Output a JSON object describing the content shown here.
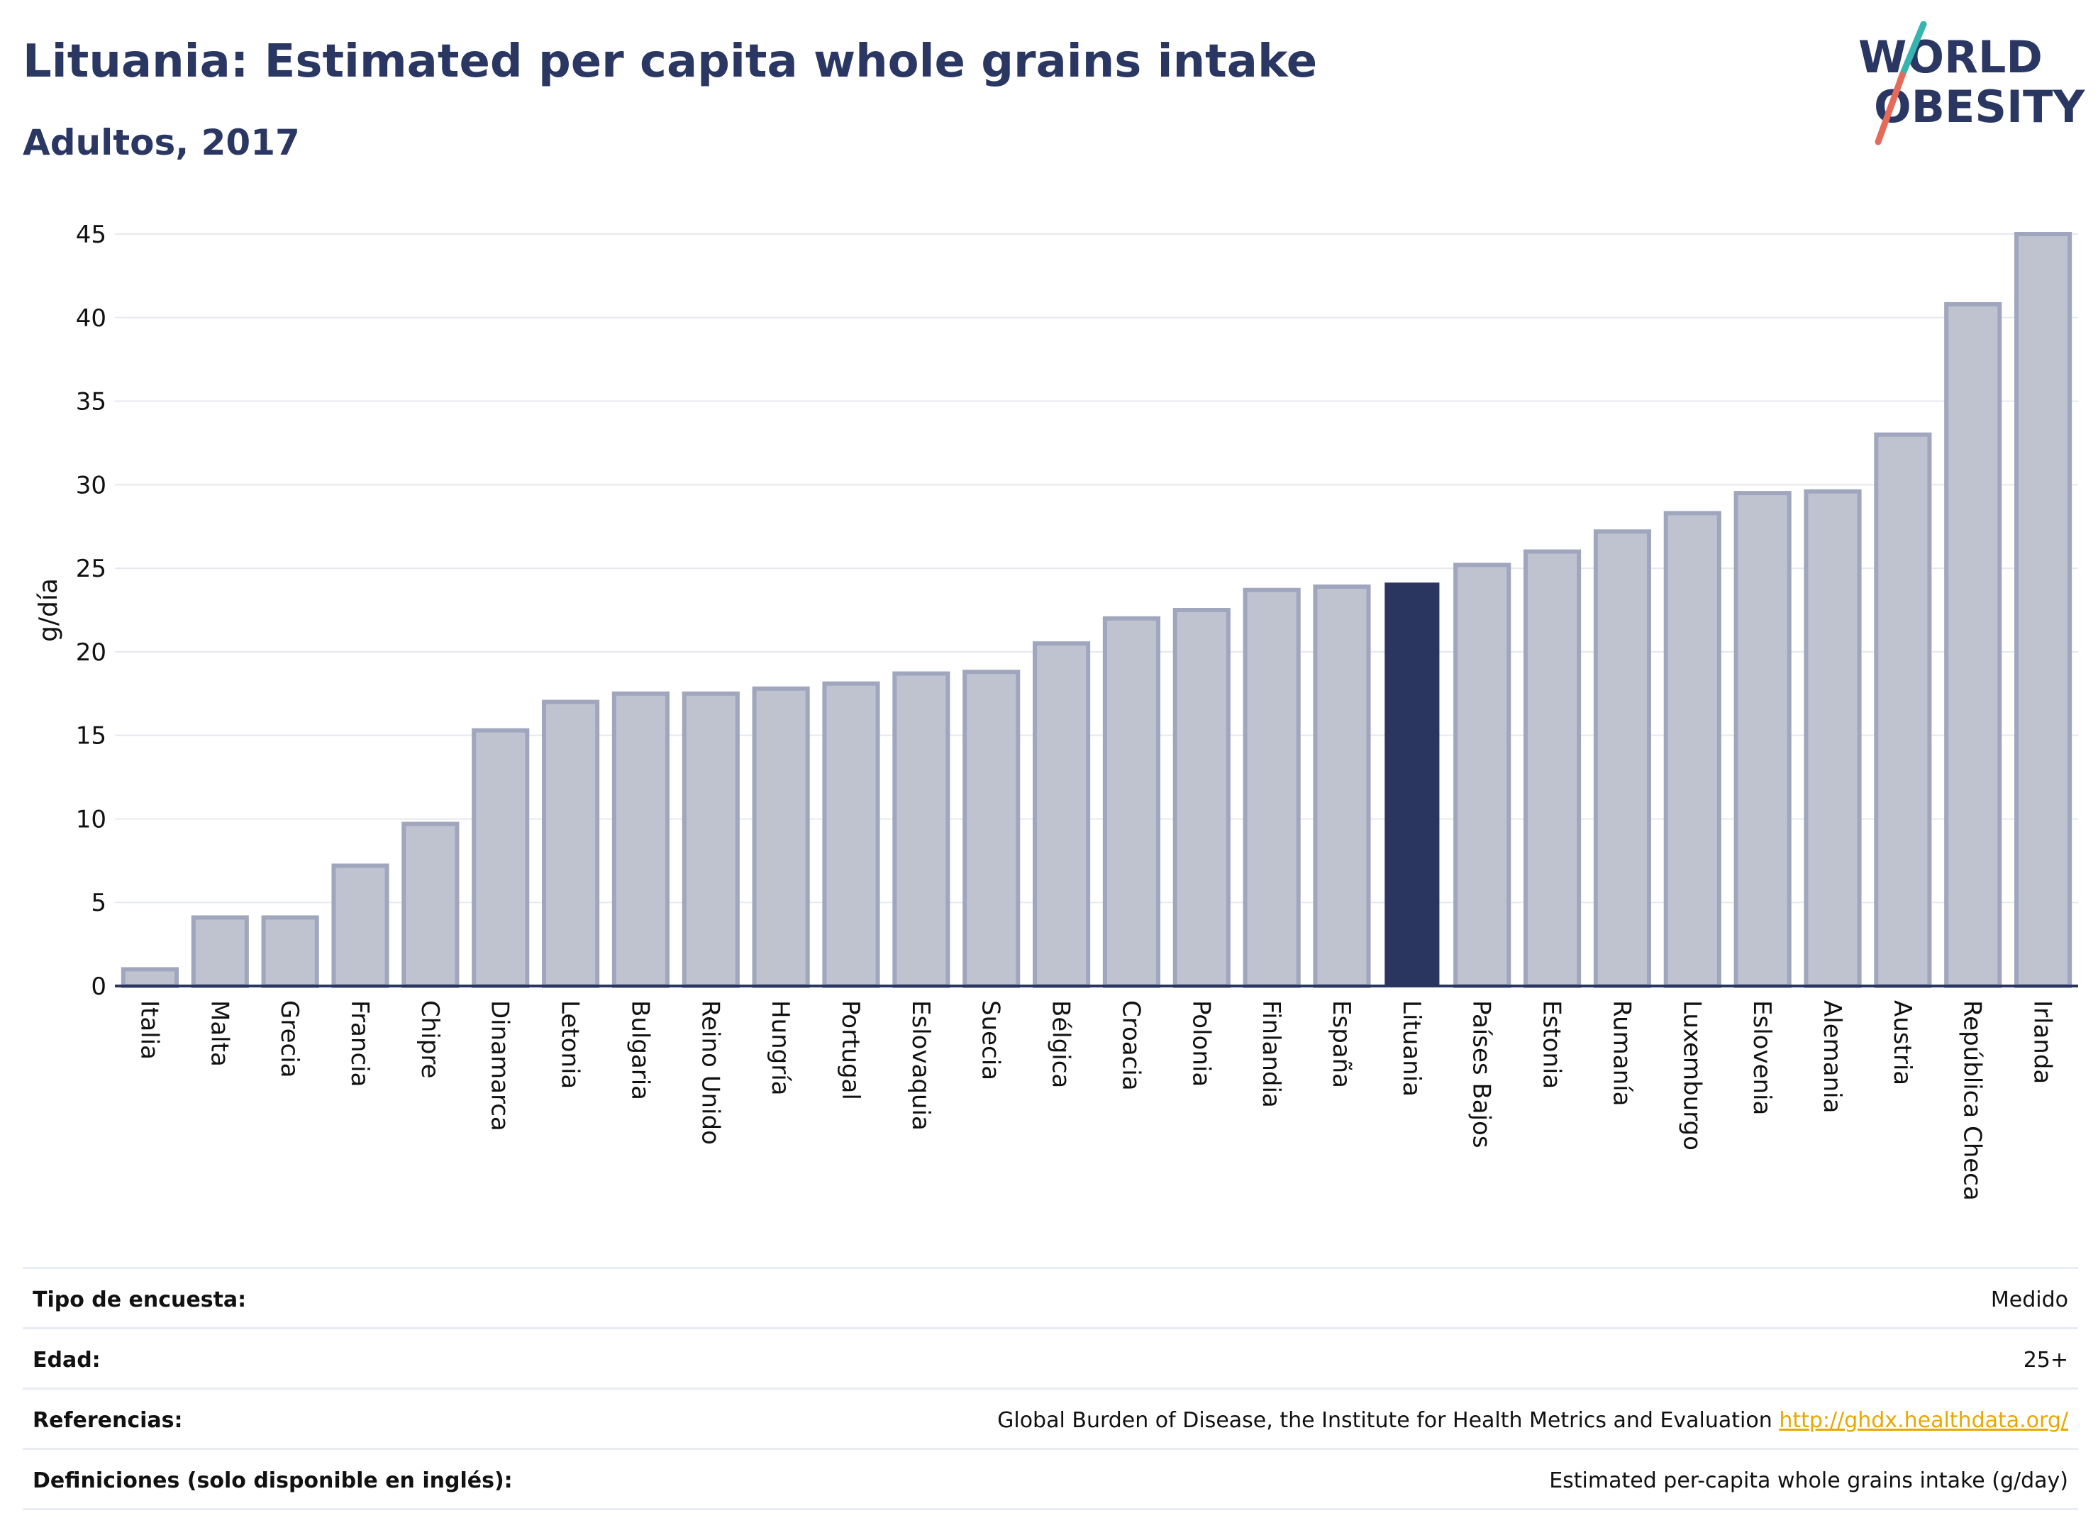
{
  "header": {
    "title": "Lituania: Estimated per capita whole grains intake",
    "subtitle": "Adultos, 2017"
  },
  "logo": {
    "line1": "WORLD",
    "line2": "OBESITY",
    "colors": {
      "text": "#2b3763",
      "slash_top": "#36b5b0",
      "slash_bottom": "#e56a5a"
    }
  },
  "colors": {
    "bar_fill": "#bfc3d0",
    "bar_stroke": "#a0a6bd",
    "highlight": "#2a3560",
    "grid": "#e6e8ef",
    "axis": "#2a3560"
  },
  "chart_data": {
    "type": "bar",
    "ylabel": "g/día",
    "ylim": [
      0,
      45
    ],
    "yticks": [
      0,
      5,
      10,
      15,
      20,
      25,
      30,
      35,
      40,
      45
    ],
    "grid": true,
    "highlight": "Lituania",
    "categories": [
      "Italia",
      "Malta",
      "Grecia",
      "Francia",
      "Chipre",
      "Dinamarca",
      "Letonia",
      "Bulgaria",
      "Reino Unido",
      "Hungría",
      "Portugal",
      "Eslovaquia",
      "Suecia",
      "Bélgica",
      "Croacia",
      "Polonia",
      "Finlandia",
      "España",
      "Lituania",
      "Países Bajos",
      "Estonia",
      "Rumanía",
      "Luxemburgo",
      "Eslovenia",
      "Alemania",
      "Austria",
      "República Checa",
      "Irlanda"
    ],
    "values": [
      1.0,
      4.1,
      4.1,
      7.2,
      9.7,
      15.3,
      17.0,
      17.5,
      17.5,
      17.8,
      18.1,
      18.7,
      18.8,
      20.5,
      22.0,
      22.5,
      23.7,
      23.9,
      24.1,
      25.2,
      26.0,
      27.2,
      28.3,
      29.5,
      29.6,
      33.0,
      40.8,
      45.0
    ]
  },
  "info": {
    "rows": [
      {
        "label": "Tipo de encuesta:",
        "value": "Medido"
      },
      {
        "label": "Edad:",
        "value": "25+"
      },
      {
        "label": "Referencias:",
        "value": "Global Burden of Disease, the Institute for Health Metrics and Evaluation",
        "link": "http://ghdx.healthdata.org/"
      },
      {
        "label": "Definiciones (solo disponible en inglés):",
        "value": "Estimated per-capita whole grains intake (g/day)"
      }
    ]
  }
}
